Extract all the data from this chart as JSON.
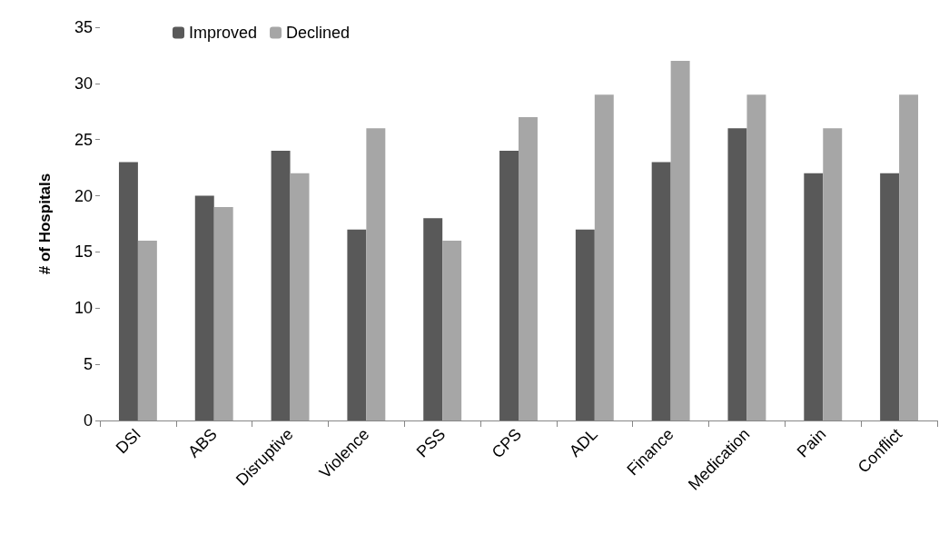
{
  "chart_data": {
    "type": "bar",
    "ylabel": "# of Hospitals",
    "categories": [
      "DSI",
      "ABS",
      "Disruptive",
      "Violence",
      "PSS",
      "CPS",
      "ADL",
      "Finance",
      "Medication",
      "Pain",
      "Conflict"
    ],
    "series": [
      {
        "name": "Improved",
        "color": "#595959",
        "values": [
          23,
          20,
          24,
          17,
          18,
          24,
          17,
          23,
          26,
          22,
          22
        ]
      },
      {
        "name": "Declined",
        "color": "#a6a6a6",
        "values": [
          16,
          19,
          22,
          26,
          16,
          27,
          29,
          32,
          29,
          26,
          29
        ]
      }
    ],
    "ylim": [
      0,
      35
    ],
    "yticks": [
      0,
      5,
      10,
      15,
      20,
      25,
      30,
      35
    ],
    "grid": false,
    "legend": "top left"
  }
}
